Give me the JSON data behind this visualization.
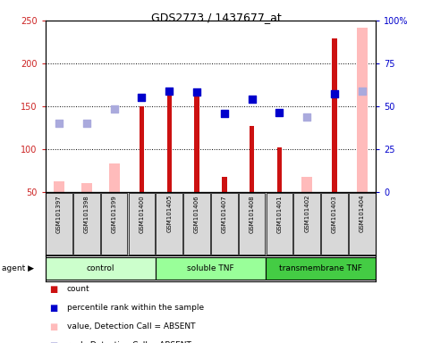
{
  "title": "GDS2773 / 1437677_at",
  "samples": [
    "GSM101397",
    "GSM101398",
    "GSM101399",
    "GSM101400",
    "GSM101405",
    "GSM101406",
    "GSM101407",
    "GSM101408",
    "GSM101401",
    "GSM101402",
    "GSM101403",
    "GSM101404"
  ],
  "groups": [
    {
      "label": "control",
      "start": 0,
      "end": 3,
      "color": "#ccffcc"
    },
    {
      "label": "soluble TNF",
      "start": 4,
      "end": 7,
      "color": "#99ff99"
    },
    {
      "label": "transmembrane TNF",
      "start": 8,
      "end": 11,
      "color": "#44cc44"
    }
  ],
  "red_bars": [
    null,
    null,
    null,
    150,
    168,
    166,
    68,
    127,
    102,
    null,
    229,
    null
  ],
  "pink_bars": [
    63,
    60,
    83,
    null,
    null,
    null,
    null,
    null,
    null,
    68,
    null,
    242
  ],
  "blue_squares": [
    null,
    null,
    null,
    160,
    168,
    167,
    142,
    158,
    143,
    null,
    165,
    null
  ],
  "lavender_squares": [
    130,
    130,
    147,
    null,
    null,
    null,
    null,
    null,
    null,
    138,
    null,
    168
  ],
  "ylim_left": [
    50,
    250
  ],
  "ylim_right": [
    0,
    100
  ],
  "yticks_left": [
    50,
    100,
    150,
    200,
    250
  ],
  "yticks_right": [
    0,
    25,
    50,
    75,
    100
  ],
  "ytick_right_labels": [
    "0",
    "25",
    "50",
    "75",
    "100%"
  ],
  "red_bar_color": "#cc1111",
  "pink_bar_color": "#ffbbbb",
  "blue_square_color": "#0000cc",
  "lavender_square_color": "#aaaadd",
  "tick_label_color_left": "#cc2222",
  "tick_label_color_right": "#0000cc",
  "bg_color": "#ffffff",
  "legend_items": [
    {
      "color": "#cc1111",
      "label": "count"
    },
    {
      "color": "#0000cc",
      "label": "percentile rank within the sample"
    },
    {
      "color": "#ffbbbb",
      "label": "value, Detection Call = ABSENT"
    },
    {
      "color": "#aaaadd",
      "label": "rank, Detection Call = ABSENT"
    }
  ]
}
